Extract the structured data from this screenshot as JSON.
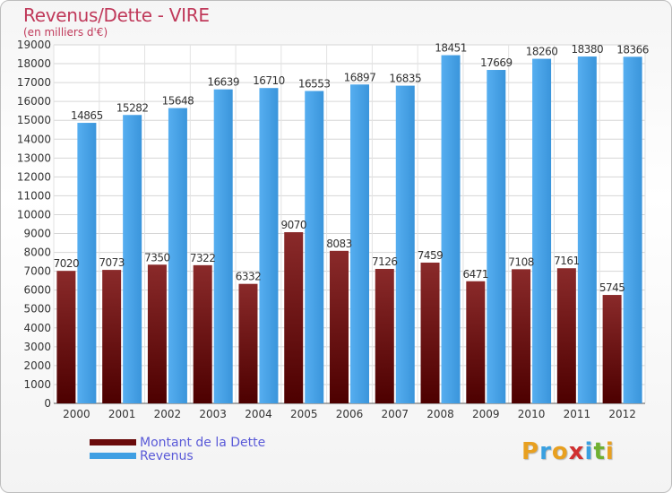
{
  "title": "Revenus/Dette - VIRE",
  "subtitle": "(en milliers d'€)",
  "logo": {
    "text": "Proxiti",
    "letters": [
      {
        "ch": "P",
        "color": "#e8a020"
      },
      {
        "ch": "r",
        "color": "#3aa0e0"
      },
      {
        "ch": "o",
        "color": "#e8a020"
      },
      {
        "ch": "x",
        "color": "#d03030"
      },
      {
        "ch": "i",
        "color": "#3aa0e0"
      },
      {
        "ch": "t",
        "color": "#70b030"
      },
      {
        "ch": "i",
        "color": "#e8a020"
      }
    ]
  },
  "legend": [
    {
      "label": "Montant de la Dette",
      "color": "#6a0a0a"
    },
    {
      "label": "Revenus",
      "color": "#3f9fe3"
    }
  ],
  "chart_data": {
    "type": "bar",
    "categories": [
      "2000",
      "2001",
      "2002",
      "2003",
      "2004",
      "2005",
      "2006",
      "2007",
      "2008",
      "2009",
      "2010",
      "2011",
      "2012"
    ],
    "series": [
      {
        "name": "Montant de la Dette",
        "color": "#7a1414",
        "values": [
          7020,
          7073,
          7350,
          7322,
          6332,
          9070,
          8083,
          7126,
          7459,
          6471,
          7108,
          7161,
          5745
        ],
        "labels": [
          "7020",
          "7073",
          "7350",
          "7322",
          "6332",
          "9070",
          "8083",
          "7126",
          "7459",
          "6471",
          "7108",
          "7161",
          "5745"
        ]
      },
      {
        "name": "Revenus",
        "color": "#3f9fe3",
        "values": [
          14865,
          15282,
          15648,
          16639,
          16710,
          16553,
          16897,
          16835,
          18451,
          17669,
          18260,
          18380,
          18366
        ],
        "labels": [
          "14865",
          "15282",
          "15648",
          "16639",
          "16710",
          "16553",
          "16897",
          "16835",
          "18451",
          "17669",
          "18260",
          "18380",
          "18366"
        ]
      }
    ],
    "ylim": [
      0,
      19000
    ],
    "yticks": [
      "0",
      "1000",
      "2000",
      "3000",
      "4000",
      "5000",
      "6000",
      "7000",
      "8000",
      "9000",
      "10000",
      "11000",
      "12000",
      "13000",
      "14000",
      "15000",
      "16000",
      "17000",
      "18000",
      "19000"
    ],
    "grid": true
  }
}
